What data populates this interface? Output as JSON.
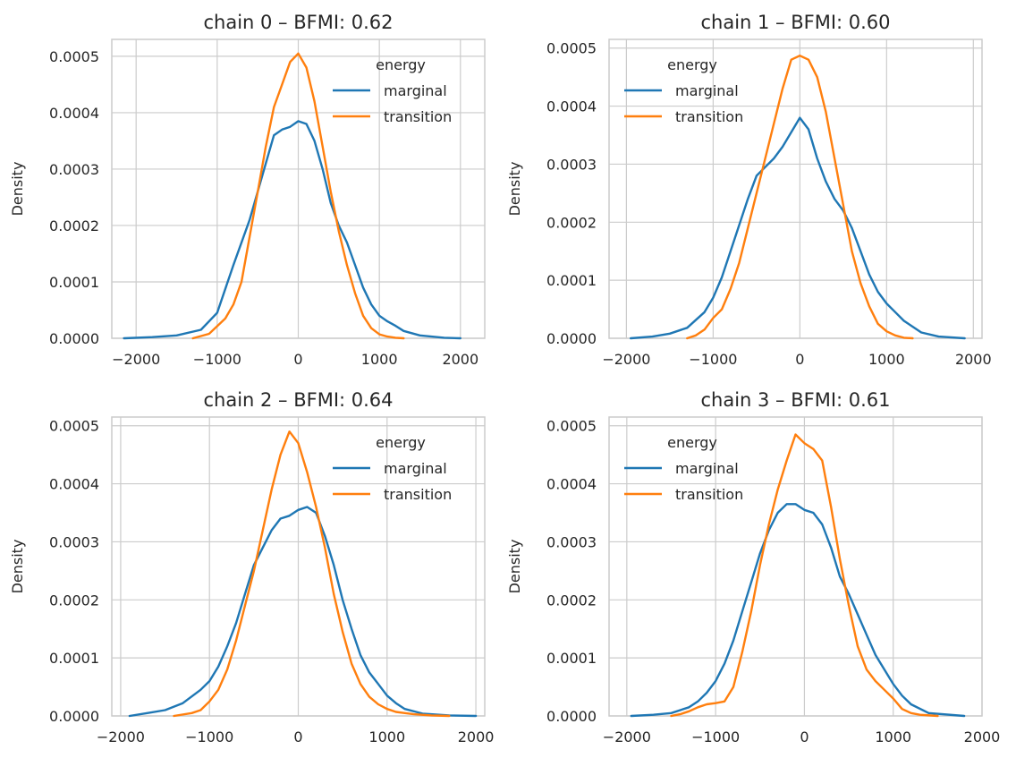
{
  "chart_data": [
    {
      "type": "line",
      "title": "chain 0 – BFMI: 0.62",
      "xlabel": "",
      "ylabel": "Density",
      "xlim": [
        -2300,
        2300
      ],
      "ylim": [
        0,
        0.00053
      ],
      "x_ticks": [
        -2000,
        -1000,
        0,
        1000,
        2000
      ],
      "x_tick_labels": [
        "−2000",
        "−1000",
        "0",
        "1000",
        "2000"
      ],
      "y_ticks": [
        0,
        0.0001,
        0.0002,
        0.0003,
        0.0004,
        0.0005
      ],
      "y_tick_labels": [
        "0.0000",
        "0.0001",
        "0.0002",
        "0.0003",
        "0.0004",
        "0.0005"
      ],
      "grid": true,
      "legend": {
        "title": "energy",
        "placement": "top-right",
        "entries": [
          "marginal",
          "transition"
        ]
      },
      "series": [
        {
          "name": "marginal",
          "color": "#1f77b4",
          "x": [
            -2150,
            -1800,
            -1500,
            -1200,
            -1000,
            -800,
            -600,
            -400,
            -300,
            -200,
            -100,
            0,
            100,
            200,
            300,
            400,
            500,
            600,
            700,
            800,
            900,
            1000,
            1100,
            1200,
            1300,
            1500,
            1800,
            2000
          ],
          "y": [
            0,
            2e-06,
            5e-06,
            1.5e-05,
            4.5e-05,
            0.00013,
            0.00021,
            0.00031,
            0.00036,
            0.00037,
            0.000375,
            0.000385,
            0.00038,
            0.00035,
            0.0003,
            0.00024,
            0.0002,
            0.00017,
            0.00013,
            9e-05,
            6e-05,
            4e-05,
            3e-05,
            2.2e-05,
            1.3e-05,
            5e-06,
            1e-06,
            0
          ]
        },
        {
          "name": "transition",
          "color": "#ff7f0e",
          "x": [
            -1300,
            -1100,
            -900,
            -800,
            -700,
            -600,
            -500,
            -400,
            -300,
            -200,
            -100,
            0,
            100,
            200,
            300,
            400,
            500,
            600,
            700,
            800,
            900,
            1000,
            1100,
            1200,
            1300
          ],
          "y": [
            0,
            8e-06,
            3.5e-05,
            6e-05,
            0.0001,
            0.00018,
            0.00026,
            0.00034,
            0.00041,
            0.00045,
            0.00049,
            0.000505,
            0.00048,
            0.00042,
            0.00034,
            0.00026,
            0.00019,
            0.00013,
            8e-05,
            4e-05,
            1.8e-05,
            7e-06,
            3e-06,
            1e-06,
            0
          ]
        }
      ]
    },
    {
      "type": "line",
      "title": "chain 1 – BFMI: 0.60",
      "xlabel": "",
      "ylabel": "Density",
      "xlim": [
        -2200,
        2100
      ],
      "ylim": [
        0,
        0.000515
      ],
      "x_ticks": [
        -2000,
        -1000,
        0,
        1000,
        2000
      ],
      "x_tick_labels": [
        "−2000",
        "−1000",
        "0",
        "1000",
        "2000"
      ],
      "y_ticks": [
        0,
        0.0001,
        0.0002,
        0.0003,
        0.0004,
        0.0005
      ],
      "y_tick_labels": [
        "0.0000",
        "0.0001",
        "0.0002",
        "0.0003",
        "0.0004",
        "0.0005"
      ],
      "grid": true,
      "legend": {
        "title": "energy",
        "placement": "top-left",
        "entries": [
          "marginal",
          "transition"
        ]
      },
      "series": [
        {
          "name": "marginal",
          "color": "#1f77b4",
          "x": [
            -1950,
            -1700,
            -1500,
            -1300,
            -1100,
            -1000,
            -900,
            -800,
            -700,
            -600,
            -500,
            -400,
            -300,
            -200,
            -100,
            0,
            100,
            200,
            300,
            400,
            500,
            600,
            700,
            800,
            900,
            1000,
            1100,
            1200,
            1400,
            1600,
            1900
          ],
          "y": [
            0,
            3e-06,
            8e-06,
            1.8e-05,
            4.5e-05,
            7e-05,
            0.000105,
            0.00015,
            0.000195,
            0.00024,
            0.00028,
            0.000295,
            0.00031,
            0.00033,
            0.000355,
            0.00038,
            0.00036,
            0.00031,
            0.00027,
            0.00024,
            0.00022,
            0.00019,
            0.00015,
            0.00011,
            8e-05,
            6e-05,
            4.5e-05,
            3e-05,
            1e-05,
            3e-06,
            0
          ]
        },
        {
          "name": "transition",
          "color": "#ff7f0e",
          "x": [
            -1300,
            -1200,
            -1100,
            -1000,
            -900,
            -800,
            -700,
            -600,
            -500,
            -400,
            -300,
            -200,
            -100,
            0,
            100,
            200,
            300,
            400,
            500,
            600,
            700,
            800,
            900,
            1000,
            1100,
            1200,
            1300
          ],
          "y": [
            0,
            5e-06,
            1.5e-05,
            3.5e-05,
            5e-05,
            8.5e-05,
            0.00013,
            0.00019,
            0.00025,
            0.00031,
            0.00037,
            0.00043,
            0.00048,
            0.000487,
            0.00048,
            0.00045,
            0.00039,
            0.00031,
            0.00023,
            0.00015,
            9.5e-05,
            5.5e-05,
            2.5e-05,
            1.2e-05,
            5e-06,
            1e-06,
            0
          ]
        }
      ]
    },
    {
      "type": "line",
      "title": "chain 2 – BFMI: 0.64",
      "xlabel": "",
      "ylabel": "Density",
      "xlim": [
        -2100,
        2100
      ],
      "ylim": [
        0,
        0.000515
      ],
      "x_ticks": [
        -2000,
        -1000,
        0,
        1000,
        2000
      ],
      "x_tick_labels": [
        "−2000",
        "−1000",
        "0",
        "1000",
        "2000"
      ],
      "y_ticks": [
        0,
        0.0001,
        0.0002,
        0.0003,
        0.0004,
        0.0005
      ],
      "y_tick_labels": [
        "0.0000",
        "0.0001",
        "0.0002",
        "0.0003",
        "0.0004",
        "0.0005"
      ],
      "grid": true,
      "legend": {
        "title": "energy",
        "placement": "top-right",
        "entries": [
          "marginal",
          "transition"
        ]
      },
      "series": [
        {
          "name": "marginal",
          "color": "#1f77b4",
          "x": [
            -1900,
            -1700,
            -1500,
            -1300,
            -1100,
            -1000,
            -900,
            -800,
            -700,
            -600,
            -500,
            -400,
            -300,
            -200,
            -100,
            0,
            100,
            200,
            300,
            400,
            500,
            600,
            700,
            800,
            900,
            1000,
            1100,
            1200,
            1400,
            1700,
            2000
          ],
          "y": [
            0,
            5e-06,
            1e-05,
            2.2e-05,
            4.5e-05,
            6e-05,
            8.5e-05,
            0.00012,
            0.00016,
            0.00021,
            0.00026,
            0.00029,
            0.00032,
            0.00034,
            0.000345,
            0.000355,
            0.00036,
            0.00035,
            0.00031,
            0.00026,
            0.0002,
            0.00015,
            0.000105,
            7.5e-05,
            5.5e-05,
            3.5e-05,
            2.2e-05,
            1.2e-05,
            4e-06,
            1e-06,
            0
          ]
        },
        {
          "name": "transition",
          "color": "#ff7f0e",
          "x": [
            -1400,
            -1200,
            -1100,
            -1000,
            -900,
            -800,
            -700,
            -600,
            -500,
            -400,
            -300,
            -200,
            -100,
            0,
            100,
            200,
            300,
            400,
            500,
            600,
            700,
            800,
            900,
            1000,
            1100,
            1200,
            1300,
            1500,
            1700
          ],
          "y": [
            0,
            5e-06,
            1e-05,
            2.5e-05,
            4.5e-05,
            8e-05,
            0.00013,
            0.00019,
            0.00025,
            0.00032,
            0.00039,
            0.00045,
            0.00049,
            0.00047,
            0.00042,
            0.00036,
            0.00029,
            0.00021,
            0.000145,
            9e-05,
            5.5e-05,
            3.3e-05,
            2e-05,
            1.2e-05,
            7e-06,
            5e-06,
            3e-06,
            1e-06,
            0
          ]
        }
      ]
    },
    {
      "type": "line",
      "title": "chain 3 – BFMI: 0.61",
      "xlabel": "",
      "ylabel": "Density",
      "xlim": [
        -2200,
        2000
      ],
      "ylim": [
        0,
        0.000515
      ],
      "x_ticks": [
        -2000,
        -1000,
        0,
        1000,
        2000
      ],
      "x_tick_labels": [
        "−2000",
        "−1000",
        "0",
        "1000",
        "2000"
      ],
      "y_ticks": [
        0,
        0.0001,
        0.0002,
        0.0003,
        0.0004,
        0.0005
      ],
      "y_tick_labels": [
        "0.0000",
        "0.0001",
        "0.0002",
        "0.0003",
        "0.0004",
        "0.0005"
      ],
      "grid": true,
      "legend": {
        "title": "energy",
        "placement": "top-left",
        "entries": [
          "marginal",
          "transition"
        ]
      },
      "series": [
        {
          "name": "marginal",
          "color": "#1f77b4",
          "x": [
            -1950,
            -1700,
            -1500,
            -1300,
            -1200,
            -1100,
            -1000,
            -900,
            -800,
            -700,
            -600,
            -500,
            -400,
            -300,
            -200,
            -100,
            0,
            100,
            200,
            300,
            400,
            500,
            600,
            700,
            800,
            900,
            1000,
            1100,
            1200,
            1400,
            1800
          ],
          "y": [
            0,
            2e-06,
            5e-06,
            1.5e-05,
            2.5e-05,
            4e-05,
            6e-05,
            9e-05,
            0.00013,
            0.00018,
            0.00023,
            0.00028,
            0.00032,
            0.00035,
            0.000365,
            0.000365,
            0.000355,
            0.00035,
            0.00033,
            0.00029,
            0.00024,
            0.00021,
            0.000175,
            0.00014,
            0.000105,
            8e-05,
            5.5e-05,
            3.5e-05,
            2e-05,
            5e-06,
            0
          ]
        },
        {
          "name": "transition",
          "color": "#ff7f0e",
          "x": [
            -1500,
            -1400,
            -1300,
            -1200,
            -1100,
            -1000,
            -900,
            -800,
            -700,
            -600,
            -500,
            -400,
            -300,
            -200,
            -100,
            0,
            100,
            200,
            300,
            400,
            500,
            600,
            700,
            800,
            900,
            1000,
            1100,
            1200,
            1300,
            1500
          ],
          "y": [
            0,
            3e-06,
            8e-06,
            1.5e-05,
            2e-05,
            2.2e-05,
            2.5e-05,
            5e-05,
            0.00011,
            0.00018,
            0.00026,
            0.00033,
            0.00039,
            0.00044,
            0.000485,
            0.00047,
            0.00046,
            0.00044,
            0.00036,
            0.00027,
            0.00019,
            0.00012,
            8e-05,
            6e-05,
            4.5e-05,
            3e-05,
            1.2e-05,
            5e-06,
            2e-06,
            0
          ]
        }
      ]
    }
  ]
}
